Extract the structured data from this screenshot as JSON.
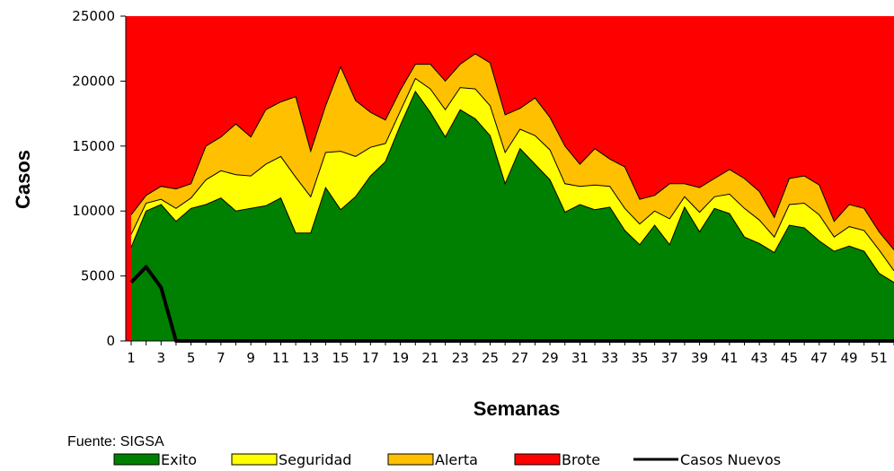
{
  "chart_data": {
    "type": "area",
    "xlabel": "Semanas",
    "ylabel": "Casos",
    "ylim": [
      0,
      25000
    ],
    "yticks": [
      0,
      5000,
      10000,
      15000,
      20000,
      25000
    ],
    "x": [
      1,
      2,
      3,
      4,
      5,
      6,
      7,
      8,
      9,
      10,
      11,
      12,
      13,
      14,
      15,
      16,
      17,
      18,
      19,
      20,
      21,
      22,
      23,
      24,
      25,
      26,
      27,
      28,
      29,
      30,
      31,
      32,
      33,
      34,
      35,
      36,
      37,
      38,
      39,
      40,
      41,
      42,
      43,
      44,
      45,
      46,
      47,
      48,
      49,
      50,
      51,
      52
    ],
    "xtick_labels": [
      "1",
      "3",
      "5",
      "7",
      "9",
      "11",
      "13",
      "15",
      "17",
      "19",
      "21",
      "23",
      "25",
      "27",
      "29",
      "31",
      "33",
      "35",
      "37",
      "39",
      "41",
      "43",
      "45",
      "47",
      "49",
      "51"
    ],
    "grid": false,
    "legend_position": "bottom",
    "series": [
      {
        "name": "Exito",
        "kind": "area",
        "color": "#008000",
        "values": [
          7200,
          10000,
          10500,
          9200,
          10200,
          10500,
          11000,
          10000,
          10200,
          10400,
          11000,
          8300,
          8300,
          11800,
          10100,
          11100,
          12700,
          13800,
          16600,
          19200,
          17600,
          15700,
          17800,
          17100,
          15800,
          12100,
          14800,
          13600,
          12400,
          9900,
          10500,
          10100,
          10300,
          8500,
          7400,
          8900,
          7400,
          10300,
          8400,
          10200,
          9800,
          8000,
          7500,
          6800,
          8900,
          8700,
          7700,
          6900,
          7300,
          6900,
          5200,
          4500
        ]
      },
      {
        "name": "Seguridad",
        "kind": "area",
        "color": "#FFFF00",
        "values": [
          8200,
          10600,
          10900,
          10200,
          11000,
          12400,
          13100,
          12800,
          12700,
          13600,
          14200,
          12600,
          11100,
          14500,
          14600,
          14200,
          14900,
          15200,
          17700,
          20200,
          19400,
          17800,
          19500,
          19400,
          18100,
          14500,
          16300,
          15800,
          14700,
          12100,
          11900,
          12000,
          11900,
          10200,
          9000,
          10000,
          9400,
          11100,
          9900,
          11100,
          11300,
          10200,
          9300,
          8000,
          10500,
          10600,
          9700,
          8000,
          8800,
          8500,
          7000,
          5400
        ]
      },
      {
        "name": "Alerta",
        "kind": "area",
        "color": "#FFC000",
        "values": [
          9700,
          11200,
          11900,
          11700,
          12100,
          15000,
          15700,
          16700,
          15700,
          17800,
          18400,
          18800,
          14600,
          18100,
          21100,
          18500,
          17600,
          17000,
          19300,
          21300,
          21300,
          20000,
          21300,
          22100,
          21400,
          17400,
          17900,
          18700,
          17200,
          15000,
          13600,
          14800,
          14000,
          13400,
          10900,
          11200,
          12100,
          12100,
          11800,
          12500,
          13200,
          12500,
          11500,
          9500,
          12500,
          12700,
          12000,
          9200,
          10500,
          10200,
          8400,
          7000
        ]
      },
      {
        "name": "Brote",
        "kind": "area",
        "color": "#FF0000",
        "values": [
          25000,
          25000,
          25000,
          25000,
          25000,
          25000,
          25000,
          25000,
          25000,
          25000,
          25000,
          25000,
          25000,
          25000,
          25000,
          25000,
          25000,
          25000,
          25000,
          25000,
          25000,
          25000,
          25000,
          25000,
          25000,
          25000,
          25000,
          25000,
          25000,
          25000,
          25000,
          25000,
          25000,
          25000,
          25000,
          25000,
          25000,
          25000,
          25000,
          25000,
          25000,
          25000,
          25000,
          25000,
          25000,
          25000,
          25000,
          25000,
          25000,
          25000,
          25000,
          25000
        ]
      },
      {
        "name": "Casos Nuevos",
        "kind": "line",
        "color": "#000000",
        "values": [
          4500,
          5700,
          4100,
          0,
          0,
          0,
          0,
          0,
          0,
          0,
          0,
          0,
          0,
          0,
          0,
          0,
          0,
          0,
          0,
          0,
          0,
          0,
          0,
          0,
          0,
          0,
          0,
          0,
          0,
          0,
          0,
          0,
          0,
          0,
          0,
          0,
          0,
          0,
          0,
          0,
          0,
          0,
          0,
          0,
          0,
          0,
          0,
          0,
          0,
          0,
          0,
          0
        ]
      }
    ]
  },
  "source_note": "Fuente: SIGSA"
}
